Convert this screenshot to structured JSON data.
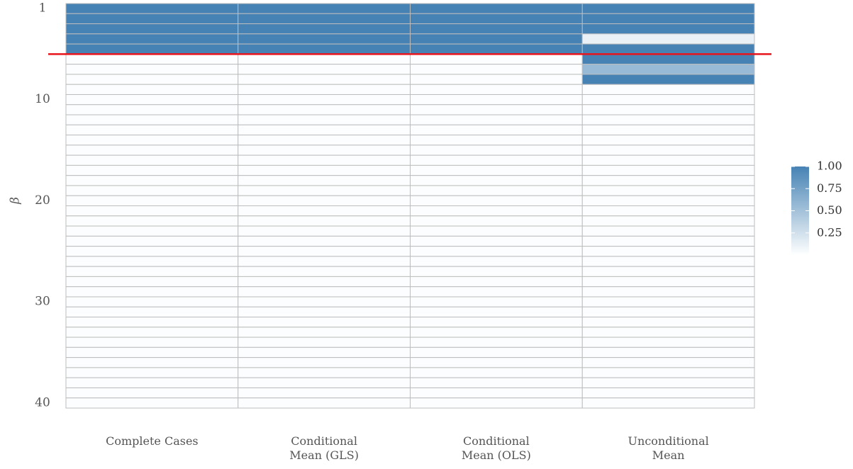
{
  "chart_data": {
    "type": "heatmap",
    "y_label": "β",
    "y": [
      1,
      2,
      3,
      4,
      5,
      6,
      7,
      8,
      9,
      10,
      11,
      12,
      13,
      14,
      15,
      16,
      17,
      18,
      19,
      20,
      21,
      22,
      23,
      24,
      25,
      26,
      27,
      28,
      29,
      30,
      31,
      32,
      33,
      34,
      35,
      36,
      37,
      38,
      39,
      40
    ],
    "ylim": [
      0.5,
      40.5
    ],
    "yticks": [
      1,
      10,
      20,
      30,
      40
    ],
    "series": [
      {
        "name": "Complete Cases",
        "values": [
          1,
          1,
          1,
          1,
          1,
          0.02,
          0.02,
          0.02,
          0.02,
          0.02,
          0.02,
          0.02,
          0.02,
          0.02,
          0.02,
          0.02,
          0.02,
          0.02,
          0.02,
          0.02,
          0.02,
          0.02,
          0.02,
          0.02,
          0.02,
          0.02,
          0.02,
          0.02,
          0.02,
          0.02,
          0.02,
          0.02,
          0.02,
          0.02,
          0.02,
          0.02,
          0.02,
          0.02,
          0.02,
          0.02
        ]
      },
      {
        "name": "Conditional Mean (GLS)",
        "values": [
          1,
          1,
          1,
          1,
          1,
          0.02,
          0.02,
          0.02,
          0.02,
          0.02,
          0.02,
          0.02,
          0.02,
          0.02,
          0.02,
          0.02,
          0.02,
          0.02,
          0.02,
          0.02,
          0.02,
          0.02,
          0.02,
          0.02,
          0.02,
          0.02,
          0.02,
          0.02,
          0.02,
          0.02,
          0.02,
          0.02,
          0.02,
          0.02,
          0.02,
          0.02,
          0.02,
          0.02,
          0.02,
          0.02
        ]
      },
      {
        "name": "Conditional Mean (OLS)",
        "values": [
          1,
          1,
          1,
          1,
          1,
          0.02,
          0.02,
          0.02,
          0.02,
          0.02,
          0.02,
          0.02,
          0.02,
          0.02,
          0.02,
          0.02,
          0.02,
          0.02,
          0.02,
          0.02,
          0.02,
          0.02,
          0.02,
          0.02,
          0.02,
          0.02,
          0.02,
          0.02,
          0.02,
          0.02,
          0.02,
          0.02,
          0.02,
          0.02,
          0.02,
          0.02,
          0.02,
          0.02,
          0.02,
          0.02
        ]
      },
      {
        "name": "Unconditional Mean",
        "values": [
          1,
          1,
          1,
          0.12,
          1,
          1,
          0.55,
          1,
          0.02,
          0.02,
          0.02,
          0.02,
          0.02,
          0.02,
          0.02,
          0.02,
          0.02,
          0.02,
          0.02,
          0.02,
          0.02,
          0.02,
          0.02,
          0.02,
          0.02,
          0.02,
          0.02,
          0.02,
          0.02,
          0.02,
          0.02,
          0.02,
          0.02,
          0.02,
          0.02,
          0.02,
          0.02,
          0.02,
          0.02,
          0.02
        ]
      }
    ],
    "color_low": "#ffffff",
    "color_high": "#4682b4",
    "colorbar_lim": [
      0,
      1
    ],
    "colorbar_ticks": [
      {
        "value": 1,
        "label": "1.00"
      },
      0.75,
      {
        "value": 0.5,
        "label": "0.50"
      },
      0.25
    ],
    "reference_line": {
      "y": 5.5,
      "color": "#e8141c"
    }
  }
}
